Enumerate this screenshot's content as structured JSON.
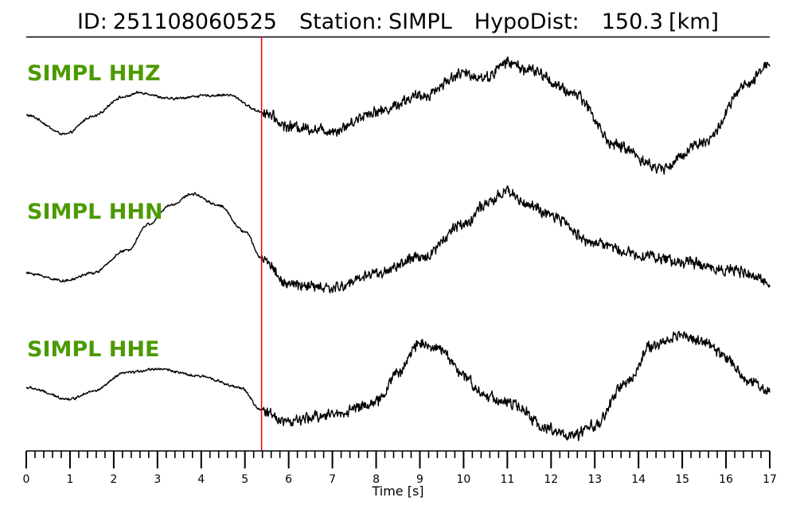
{
  "header": {
    "id_label": "ID:",
    "id_value": "251108060525",
    "station_label": "Station:",
    "station_value": "SIMPL",
    "hypodist_label": "HypoDist:",
    "hypodist_value": "150.3",
    "hypodist_unit": "[km]"
  },
  "colors": {
    "trace": "#000000",
    "label": "#4c9a00",
    "pick": "#e8000b",
    "axis": "#000000"
  },
  "chart_data": {
    "type": "line",
    "title": "ID: 251108060525   Station: SIMPL   HypoDist:   150.3 [km]",
    "xlabel": "Time [s]",
    "ylabel": "",
    "xlim": [
      0,
      17
    ],
    "x_major_ticks": [
      0,
      1,
      2,
      3,
      4,
      5,
      6,
      7,
      8,
      9,
      10,
      11,
      12,
      13,
      14,
      15,
      16,
      17
    ],
    "x_minor_tick_step": 0.2,
    "pick_time": 5.38,
    "grid": false,
    "legend": "none",
    "series": [
      {
        "name": "SIMPL HHZ",
        "noise_before_pick": 0.02,
        "noise_after_pick": 0.09,
        "envelope": [
          [
            0,
            0.0
          ],
          [
            0.9,
            -0.25
          ],
          [
            1.5,
            -0.02
          ],
          [
            2.2,
            0.24
          ],
          [
            2.6,
            0.3
          ],
          [
            3.3,
            0.22
          ],
          [
            4.1,
            0.26
          ],
          [
            4.6,
            0.27
          ],
          [
            5.38,
            0.05
          ],
          [
            6.0,
            -0.15
          ],
          [
            7.0,
            -0.2
          ],
          [
            8.0,
            0.05
          ],
          [
            9.0,
            0.25
          ],
          [
            10.0,
            0.55
          ],
          [
            10.5,
            0.5
          ],
          [
            11.0,
            0.7
          ],
          [
            11.5,
            0.6
          ],
          [
            12.5,
            0.3
          ],
          [
            13.5,
            -0.4
          ],
          [
            14.5,
            -0.7
          ],
          [
            15.5,
            -0.35
          ],
          [
            16.5,
            0.4
          ],
          [
            17.0,
            0.7
          ]
        ]
      },
      {
        "name": "SIMPL HHN",
        "noise_before_pick": 0.02,
        "noise_after_pick": 0.09,
        "envelope": [
          [
            0,
            -0.3
          ],
          [
            0.9,
            -0.4
          ],
          [
            1.5,
            -0.3
          ],
          [
            2.3,
            0.0
          ],
          [
            2.8,
            0.35
          ],
          [
            3.3,
            0.6
          ],
          [
            3.8,
            0.75
          ],
          [
            4.4,
            0.6
          ],
          [
            5.0,
            0.25
          ],
          [
            5.38,
            -0.1
          ],
          [
            6.0,
            -0.45
          ],
          [
            7.0,
            -0.5
          ],
          [
            8.0,
            -0.3
          ],
          [
            9.0,
            -0.1
          ],
          [
            10.0,
            0.35
          ],
          [
            10.5,
            0.6
          ],
          [
            11.0,
            0.78
          ],
          [
            11.5,
            0.6
          ],
          [
            12.0,
            0.45
          ],
          [
            13.0,
            0.1
          ],
          [
            14.0,
            -0.05
          ],
          [
            15.0,
            -0.15
          ],
          [
            16.0,
            -0.25
          ],
          [
            17.0,
            -0.4
          ]
        ]
      },
      {
        "name": "SIMPL HHE",
        "noise_before_pick": 0.02,
        "noise_after_pick": 0.09,
        "envelope": [
          [
            0,
            -0.1
          ],
          [
            1.0,
            -0.25
          ],
          [
            1.5,
            -0.15
          ],
          [
            2.3,
            0.1
          ],
          [
            3.0,
            0.15
          ],
          [
            4.0,
            0.05
          ],
          [
            4.9,
            -0.1
          ],
          [
            5.38,
            -0.4
          ],
          [
            6.0,
            -0.55
          ],
          [
            7.0,
            -0.45
          ],
          [
            8.0,
            -0.3
          ],
          [
            8.5,
            0.1
          ],
          [
            9.0,
            0.5
          ],
          [
            9.5,
            0.4
          ],
          [
            10.0,
            0.05
          ],
          [
            10.5,
            -0.2
          ],
          [
            11.0,
            -0.3
          ],
          [
            12.0,
            -0.65
          ],
          [
            12.5,
            -0.75
          ],
          [
            13.0,
            -0.6
          ],
          [
            13.7,
            -0.05
          ],
          [
            14.3,
            0.45
          ],
          [
            15.0,
            0.6
          ],
          [
            15.5,
            0.5
          ],
          [
            16.0,
            0.3
          ],
          [
            16.5,
            0.0
          ],
          [
            17.0,
            -0.15
          ]
        ]
      }
    ]
  }
}
